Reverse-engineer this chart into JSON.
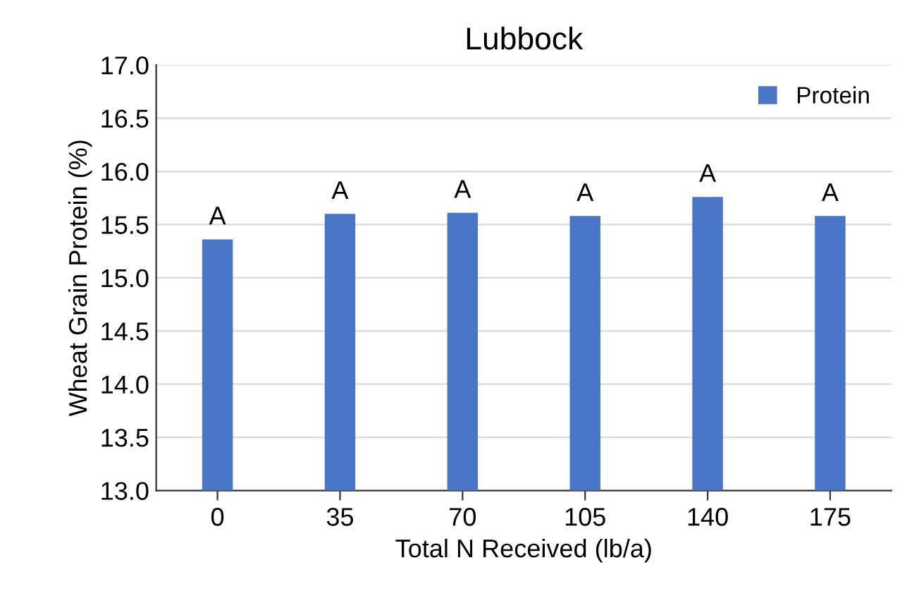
{
  "chart_data": {
    "type": "bar",
    "title": "Lubbock",
    "xlabel": "Total N Received (lb/a)",
    "ylabel": "Wheat Grain Protein (%)",
    "categories": [
      "0",
      "35",
      "70",
      "105",
      "140",
      "175"
    ],
    "series": [
      {
        "name": "Protein",
        "color": "#4a76c8",
        "values": [
          15.36,
          15.6,
          15.61,
          15.58,
          15.76,
          15.58
        ]
      }
    ],
    "annotations": [
      {
        "text": "A",
        "x": "0",
        "y": 15.36
      },
      {
        "text": "A",
        "x": "35",
        "y": 15.6
      },
      {
        "text": "A",
        "x": "70",
        "y": 15.61
      },
      {
        "text": "A",
        "x": "105",
        "y": 15.58
      },
      {
        "text": "A",
        "x": "140",
        "y": 15.76
      },
      {
        "text": "A",
        "x": "175",
        "y": 15.58
      }
    ],
    "ylim": [
      13.0,
      17.0
    ],
    "yticks": [
      {
        "value": 13.0,
        "label": "13.0"
      },
      {
        "value": 13.5,
        "label": "13.5"
      },
      {
        "value": 14.0,
        "label": "14.0"
      },
      {
        "value": 14.5,
        "label": "14.5"
      },
      {
        "value": 15.0,
        "label": "15.0"
      },
      {
        "value": 15.5,
        "label": "15.5"
      },
      {
        "value": 16.0,
        "label": "16.0"
      },
      {
        "value": 16.5,
        "label": "16.5"
      },
      {
        "value": 17.0,
        "label": "17.0"
      }
    ],
    "grid": "y",
    "legend": "top right"
  }
}
